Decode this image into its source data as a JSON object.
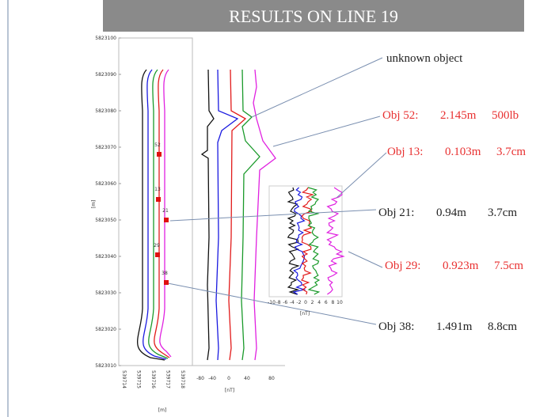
{
  "title": "RESULTS ON LINE 19",
  "plot": {
    "y_axis_label": "[m]",
    "y_ticks": [
      "5823100",
      "5823090",
      "5823080",
      "5823070",
      "5823060",
      "5823050",
      "5823040",
      "5823030",
      "5823020",
      "5823010"
    ],
    "left_x_ticks": [
      "539714",
      "539715",
      "539716",
      "539717",
      "539718"
    ],
    "left_x_label": "[m]",
    "mid_x_ticks": [
      "-80",
      "-40",
      "0",
      "40",
      "80"
    ],
    "mid_x_label": "[nT]",
    "inset_x_ticks": [
      "-10",
      "-8",
      "-6",
      "-4",
      "-2",
      "0",
      "2",
      "4",
      "6",
      "8",
      "10"
    ],
    "inset_x_label": "[nT]",
    "markers": [
      "52",
      "13",
      "21",
      "29",
      "38"
    ]
  },
  "annotations": {
    "unknown": "unknown object",
    "objects": [
      {
        "name": "Obj 52:",
        "depth": "2.145m",
        "size": "500lb"
      },
      {
        "name": "Obj 13:",
        "depth": "0.103m",
        "size": "3.7cm"
      },
      {
        "name": "Obj 21:",
        "depth": "0.94m",
        "size": "3.7cm"
      },
      {
        "name": "Obj 29:",
        "depth": "0.923m",
        "size": "7.5cm"
      },
      {
        "name": "Obj 38:",
        "depth": "1.491m",
        "size": "8.8cm"
      }
    ]
  }
}
